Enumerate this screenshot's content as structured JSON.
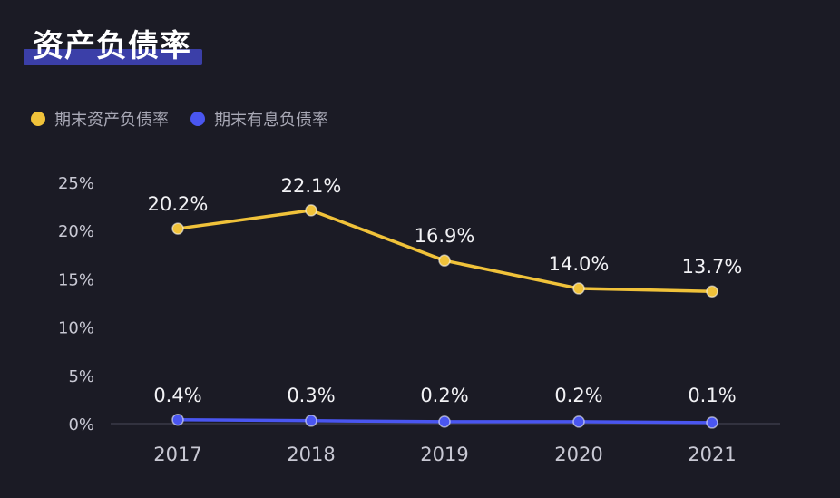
{
  "title": "资产负债率",
  "colors": {
    "background": "#1b1b25",
    "title_highlight": "#3b3fa8",
    "series_1": "#f0c23a",
    "series_2": "#4a56f0"
  },
  "legend": [
    {
      "name": "期末资产负债率",
      "color": "#f0c23a"
    },
    {
      "name": "期末有息负债率",
      "color": "#4a56f0"
    }
  ],
  "chart_data": {
    "type": "line",
    "title": "资产负债率",
    "x": [
      "2017",
      "2018",
      "2019",
      "2020",
      "2021"
    ],
    "y_ticks": [
      "0%",
      "5%",
      "10%",
      "15%",
      "20%",
      "25%"
    ],
    "ylim": [
      0,
      25
    ],
    "grid": false,
    "legend_position": "top-left",
    "series": [
      {
        "name": "期末资产负债率",
        "color": "#f0c23a",
        "values": [
          20.2,
          22.1,
          16.9,
          14.0,
          13.7
        ],
        "labels": [
          "20.2%",
          "22.1%",
          "16.9%",
          "14.0%",
          "13.7%"
        ]
      },
      {
        "name": "期末有息负债率",
        "color": "#4a56f0",
        "values": [
          0.4,
          0.3,
          0.2,
          0.2,
          0.1
        ],
        "labels": [
          "0.4%",
          "0.3%",
          "0.2%",
          "0.2%",
          "0.1%"
        ]
      }
    ]
  }
}
